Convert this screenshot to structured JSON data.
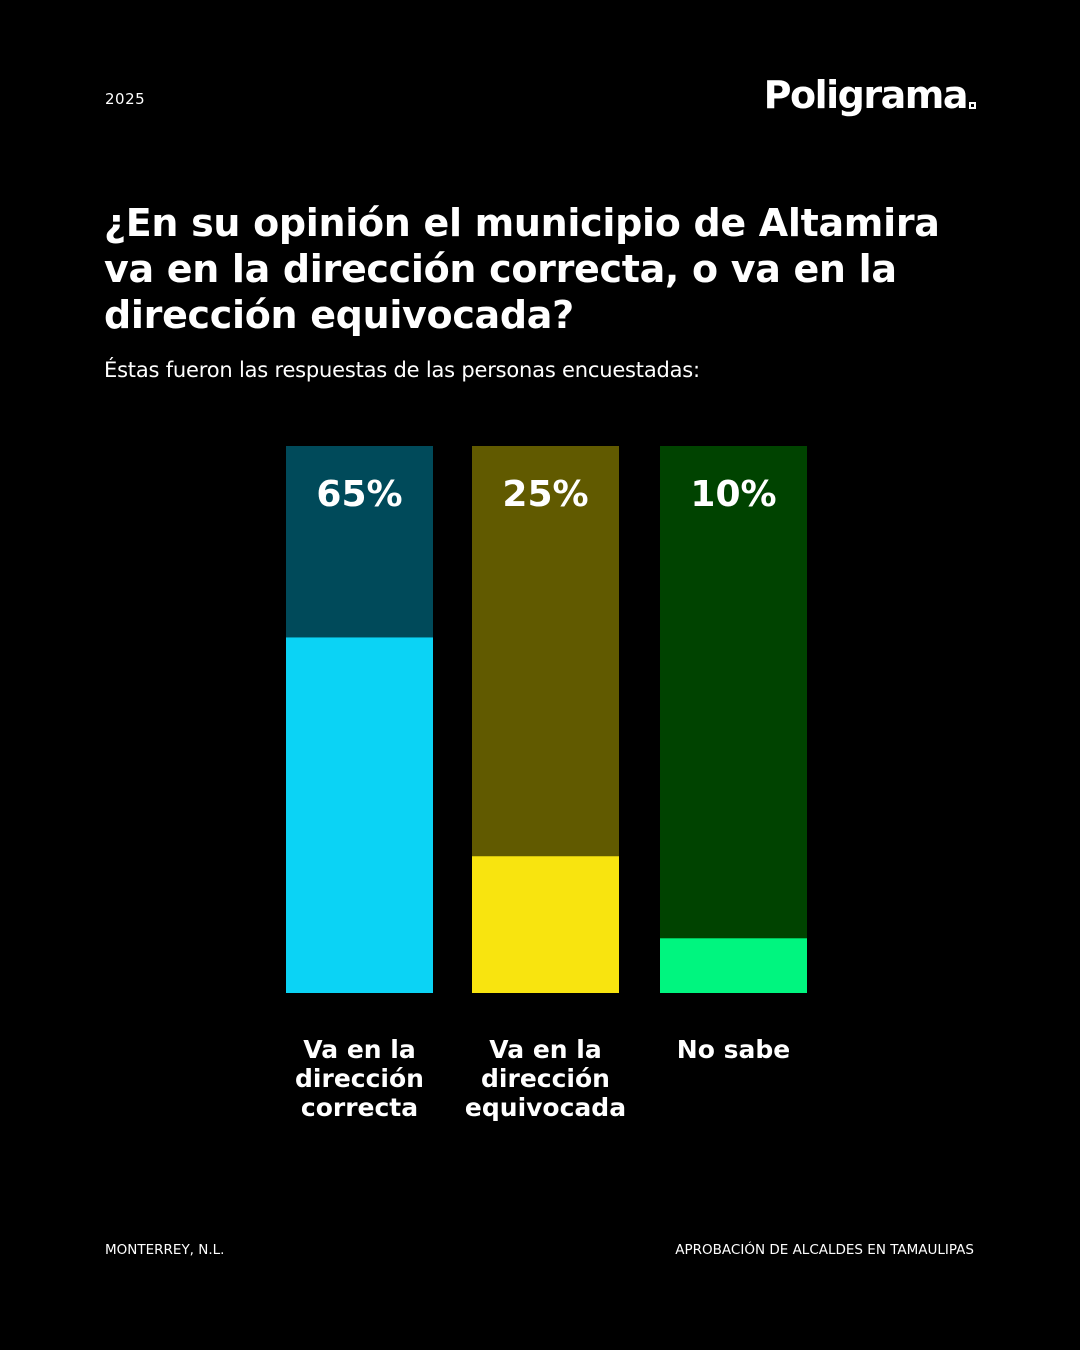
{
  "header": {
    "year": "2025",
    "brand": "Poligrama"
  },
  "title": "¿En su opinión el municipio de Altamira va en la dirección correcta, o va en la dirección equivocada?",
  "subtitle": "Éstas fueron las respuestas de las personas encuestadas:",
  "chart_data": {
    "type": "bar",
    "categories": [
      "Va en la\ndirección\ncorrecta",
      "Va en la\ndirección\nequivocada",
      "No sabe"
    ],
    "values": [
      65,
      25,
      10
    ],
    "value_labels": [
      "65%",
      "25%",
      "10%"
    ],
    "ylim": [
      0,
      100
    ],
    "colors": [
      "#0bd3f5",
      "#f8e40f",
      "#00f57f"
    ],
    "track_colors": [
      "#004a5a",
      "#615a00",
      "#004300"
    ],
    "grid": false,
    "legend": "none"
  },
  "footer": {
    "left": "MONTERREY, N.L.",
    "right": "APROBACIÓN DE ALCALDES EN TAMAULIPAS"
  }
}
